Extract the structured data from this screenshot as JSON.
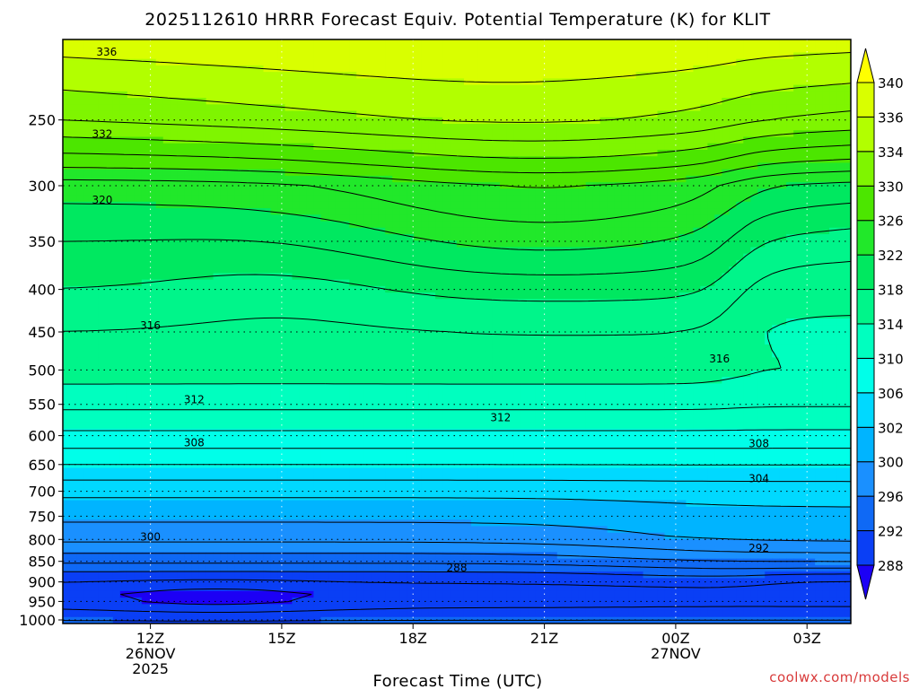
{
  "title": "2025112610 HRRR Forecast Equiv. Potential Temperature (K) for KLIT",
  "xlabel": "Forecast Time (UTC)",
  "credit": "coolwx.com/models",
  "colors": {
    "credit": "#d83a3a",
    "ground": "#a9542a",
    "contour": "#000000",
    "grid": "#000000"
  },
  "chart_data": {
    "type": "heatmap",
    "title": "2025112610 HRRR Forecast Equiv. Potential Temperature (K) for KLIT",
    "xlabel": "Forecast Time (UTC)",
    "ylabel": "",
    "x_ticks": [
      {
        "hour": 12,
        "lines": [
          "12Z",
          "26NOV",
          "2025"
        ]
      },
      {
        "hour": 15,
        "lines": [
          "15Z"
        ]
      },
      {
        "hour": 18,
        "lines": [
          "18Z"
        ]
      },
      {
        "hour": 21,
        "lines": [
          "21Z"
        ]
      },
      {
        "hour": 24,
        "lines": [
          "00Z",
          "27NOV"
        ]
      },
      {
        "hour": 27,
        "lines": [
          "03Z"
        ]
      }
    ],
    "xlim": [
      10,
      28
    ],
    "y_ticks": [
      250,
      300,
      350,
      400,
      450,
      500,
      550,
      600,
      650,
      700,
      750,
      800,
      850,
      900,
      950,
      1000
    ],
    "ylim": [
      1010,
      200
    ],
    "y_scale": "log-pressure",
    "grid": true,
    "colorbar": {
      "levels": [
        288,
        292,
        296,
        300,
        302,
        306,
        310,
        314,
        318,
        322,
        326,
        330,
        334,
        336,
        340
      ],
      "colors": [
        "#1c00f5",
        "#0a3ff5",
        "#0f69f5",
        "#1a90ff",
        "#00b4ff",
        "#00d9ff",
        "#00ffe9",
        "#00ffbf",
        "#00f58a",
        "#00e860",
        "#21e82a",
        "#4ce600",
        "#7ff500",
        "#b2ff00",
        "#d9ff00",
        "#ffff00"
      ],
      "extend": "both"
    },
    "contour_labels": [
      {
        "text": "336",
        "hour": 11.0,
        "pressure": 207
      },
      {
        "text": "332",
        "hour": 10.9,
        "pressure": 260
      },
      {
        "text": "320",
        "hour": 10.9,
        "pressure": 312
      },
      {
        "text": "316",
        "hour": 12.0,
        "pressure": 442
      },
      {
        "text": "316",
        "hour": 25.0,
        "pressure": 485
      },
      {
        "text": "312",
        "hour": 13.0,
        "pressure": 543
      },
      {
        "text": "312",
        "hour": 20.0,
        "pressure": 571
      },
      {
        "text": "308",
        "hour": 13.0,
        "pressure": 612
      },
      {
        "text": "308",
        "hour": 25.9,
        "pressure": 613
      },
      {
        "text": "304",
        "hour": 25.9,
        "pressure": 676
      },
      {
        "text": "300",
        "hour": 12.0,
        "pressure": 794
      },
      {
        "text": "292",
        "hour": 25.9,
        "pressure": 820
      },
      {
        "text": "288",
        "hour": 19.0,
        "pressure": 866
      }
    ],
    "contour_levels": [
      288,
      290,
      292,
      294,
      296,
      298,
      300,
      302,
      304,
      306,
      308,
      310,
      312,
      314,
      316,
      318,
      320,
      322,
      324,
      326,
      328,
      330,
      332,
      334,
      336
    ],
    "ground_pressure": 1010
  }
}
